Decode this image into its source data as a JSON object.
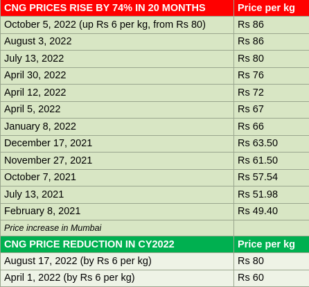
{
  "table1": {
    "title": "CNG PRICES RISE BY 74% IN 20 MONTHS",
    "price_header": "Price per kg",
    "rows": [
      {
        "date": "October 5, 2022 (up Rs 6 per kg, from Rs 80)",
        "price": "Rs 86"
      },
      {
        "date": "August 3, 2022",
        "price": "Rs 86"
      },
      {
        "date": "July 13, 2022",
        "price": "Rs 80"
      },
      {
        "date": "April 30, 2022",
        "price": "Rs 76"
      },
      {
        "date": "April 12, 2022",
        "price": "Rs 72"
      },
      {
        "date": "April 5, 2022",
        "price": "Rs 67"
      },
      {
        "date": "January 8, 2022",
        "price": "Rs 66"
      },
      {
        "date": "December 17, 2021",
        "price": "Rs 63.50"
      },
      {
        "date": "November 27, 2021",
        "price": "Rs 61.50"
      },
      {
        "date": "October 7, 2021",
        "price": "Rs 57.54"
      },
      {
        "date": "July 13, 2021",
        "price": "Rs 51.98"
      },
      {
        "date": "February 8, 2021",
        "price": "Rs 49.40"
      }
    ],
    "note": "Price increase in Mumbai"
  },
  "table2": {
    "title": "CNG PRICE REDUCTION IN CY2022",
    "price_header": "Price per kg",
    "rows": [
      {
        "date": "August 17, 2022 (by Rs 6 per kg)",
        "price": "Rs 80"
      },
      {
        "date": "April 1, 2022 (by Rs 6 per kg)",
        "price": "Rs 60"
      }
    ]
  },
  "colors": {
    "header_red": "#ff0000",
    "header_green": "#00b050",
    "row_green": "#d8e6c4",
    "row_light": "#eef3e6"
  }
}
